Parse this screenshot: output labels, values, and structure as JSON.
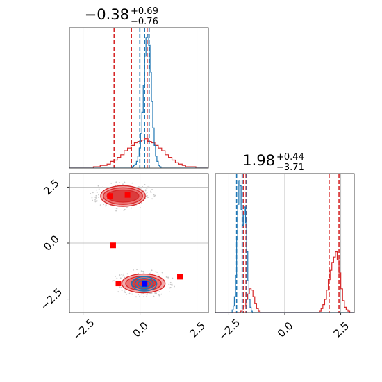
{
  "chart_data": {
    "type": "corner",
    "parameters": [
      {
        "title": {
          "median": "−0.38",
          "plus": "+0.69",
          "minus": "−0.76"
        },
        "range": [
          -3.1,
          3.0
        ],
        "ticks": [
          -2.5,
          0.0,
          2.5
        ],
        "tick_labels": [
          "−2.5",
          "0.0",
          "2.5"
        ]
      },
      {
        "title": {
          "median": "1.98",
          "plus": "+0.44",
          "minus": "−3.71"
        },
        "range": [
          -3.1,
          3.1
        ],
        "ticks": [
          -2.5,
          0.0,
          2.5
        ],
        "tick_labels": [
          "−2.5",
          "0.0",
          "2.5"
        ]
      }
    ],
    "panels": [
      {
        "kind": "hist1d",
        "param": 0,
        "series": [
          {
            "color": "#d62728",
            "bin_start": -3.1,
            "bin_width": 0.15,
            "counts": [
              0.0,
              0.0,
              0.0,
              0.0,
              0.0,
              0.0,
              0.0,
              0.01,
              0.01,
              0.02,
              0.02,
              0.03,
              0.05,
              0.06,
              0.08,
              0.1,
              0.13,
              0.15,
              0.17,
              0.19,
              0.2,
              0.21,
              0.22,
              0.2,
              0.19,
              0.17,
              0.15,
              0.13,
              0.1,
              0.08,
              0.06,
              0.04,
              0.03,
              0.02,
              0.01,
              0.01,
              0.01,
              0.0,
              0.0,
              0.0,
              0.0
            ],
            "quantiles": [
              -1.14,
              -0.38,
              0.31
            ],
            "truth": 0.4
          },
          {
            "color": "#1f77b4",
            "bin_start": -3.1,
            "bin_width": 0.06,
            "counts": [
              0.0,
              0.0,
              0.0,
              0.0,
              0.0,
              0.0,
              0.0,
              0.0,
              0.0,
              0.0,
              0.0,
              0.0,
              0.0,
              0.0,
              0.0,
              0.0,
              0.0,
              0.0,
              0.0,
              0.0,
              0.0,
              0.0,
              0.0,
              0.0,
              0.0,
              0.0,
              0.0,
              0.0,
              0.0,
              0.0,
              0.0,
              0.0,
              0.0,
              0.0,
              0.0,
              0.0,
              0.0,
              0.0,
              0.0,
              0.0,
              0.0,
              0.0,
              0.0,
              0.0,
              0.0,
              0.0,
              0.01,
              0.02,
              0.03,
              0.05,
              0.09,
              0.15,
              0.26,
              0.42,
              0.62,
              0.84,
              0.98,
              1.0,
              0.92,
              0.72,
              0.5,
              0.3,
              0.17,
              0.09,
              0.05,
              0.02,
              0.01,
              0.0,
              0.0,
              0.0,
              0.0,
              0.0,
              0.0,
              0.0,
              0.0,
              0.0,
              0.0,
              0.0,
              0.0,
              0.0,
              0.0,
              0.0,
              0.0,
              0.0,
              0.0,
              0.0,
              0.0,
              0.0,
              0.0,
              0.0,
              0.0,
              0.0,
              0.0,
              0.0,
              0.0,
              0.0,
              0.0,
              0.0,
              0.0,
              0.0,
              0.0
            ],
            "quantiles": [
              -0.01,
              0.2,
              0.4
            ]
          }
        ]
      },
      {
        "kind": "hist1d",
        "param": 1,
        "series": [
          {
            "color": "#d62728",
            "bin_start": -3.1,
            "bin_width": 0.08,
            "counts": [
              0.0,
              0.0,
              0.0,
              0.0,
              0.0,
              0.0,
              0.0,
              0.0,
              0.0,
              0.0,
              0.0,
              0.0,
              0.0,
              0.0,
              0.01,
              0.02,
              0.05,
              0.1,
              0.14,
              0.18,
              0.17,
              0.12,
              0.07,
              0.03,
              0.01,
              0.0,
              0.0,
              0.0,
              0.0,
              0.0,
              0.0,
              0.0,
              0.0,
              0.0,
              0.0,
              0.0,
              0.0,
              0.0,
              0.0,
              0.0,
              0.0,
              0.0,
              0.0,
              0.0,
              0.0,
              0.0,
              0.0,
              0.0,
              0.0,
              0.0,
              0.0,
              0.0,
              0.0,
              0.0,
              0.0,
              0.0,
              0.0,
              0.0,
              0.01,
              0.03,
              0.06,
              0.1,
              0.17,
              0.25,
              0.32,
              0.38,
              0.42,
              0.46,
              0.4,
              0.3,
              0.18,
              0.09,
              0.04,
              0.02,
              0.01,
              0.0,
              0.0,
              0.0
            ],
            "quantiles": [
              -1.73,
              1.98,
              2.42
            ],
            "truth": -1.84
          },
          {
            "color": "#1f77b4",
            "bin_start": -3.1,
            "bin_width": 0.05,
            "counts": [
              0.0,
              0.0,
              0.0,
              0.0,
              0.0,
              0.0,
              0.0,
              0.0,
              0.0,
              0.0,
              0.0,
              0.0,
              0.0,
              0.0,
              0.0,
              0.02,
              0.05,
              0.12,
              0.28,
              0.55,
              0.82,
              1.0,
              0.96,
              0.78,
              0.66,
              0.74,
              0.8,
              0.68,
              0.46,
              0.24,
              0.1,
              0.04,
              0.01,
              0.0,
              0.0,
              0.0,
              0.0,
              0.0,
              0.0,
              0.0,
              0.0,
              0.0,
              0.0,
              0.0,
              0.0,
              0.0,
              0.0,
              0.0,
              0.0,
              0.0,
              0.0,
              0.0,
              0.0,
              0.0,
              0.0,
              0.0,
              0.0,
              0.0,
              0.0,
              0.0,
              0.0,
              0.0,
              0.0,
              0.0,
              0.0,
              0.0,
              0.0,
              0.0,
              0.0,
              0.0,
              0.0,
              0.0,
              0.0,
              0.0,
              0.0,
              0.0,
              0.0,
              0.0,
              0.0,
              0.0,
              0.0,
              0.0,
              0.0,
              0.0,
              0.0,
              0.0,
              0.0,
              0.0,
              0.0,
              0.0,
              0.0,
              0.0,
              0.0,
              0.0,
              0.0,
              0.0,
              0.0,
              0.0,
              0.0,
              0.0,
              0.0,
              0.0,
              0.0,
              0.0,
              0.0,
              0.0,
              0.0,
              0.0,
              0.0,
              0.0,
              0.0,
              0.0,
              0.0,
              0.0,
              0.0,
              0.0,
              0.0,
              0.0,
              0.0,
              0.0,
              0.0,
              0.0,
              0.0,
              0.0
            ],
            "quantiles": [
              -2.15,
              -1.9,
              -1.7
            ]
          }
        ]
      },
      {
        "kind": "contour2d",
        "params": [
          0,
          1
        ],
        "series": [
          {
            "color": "#d62728",
            "modes": [
              {
                "cx": -0.75,
                "cy": 2.1,
                "levels": [
                  {
                    "rx": 0.98,
                    "ry": 0.46
                  },
                  {
                    "rx": 0.86,
                    "ry": 0.37
                  },
                  {
                    "rx": 0.7,
                    "ry": 0.27
                  }
                ]
              },
              {
                "cx": 0.15,
                "cy": -1.8,
                "levels": [
                  {
                    "rx": 0.95,
                    "ry": 0.42
                  },
                  {
                    "rx": 0.78,
                    "ry": 0.32
                  },
                  {
                    "rx": 0.55,
                    "ry": 0.22
                  }
                ]
              }
            ]
          },
          {
            "color": "#1f77b4",
            "modes": [
              {
                "cx": 0.18,
                "cy": -1.82,
                "levels": [
                  {
                    "rx": 0.55,
                    "ry": 0.32
                  },
                  {
                    "rx": 0.4,
                    "ry": 0.24
                  },
                  {
                    "rx": 0.26,
                    "ry": 0.15
                  }
                ]
              }
            ]
          }
        ],
        "markers": [
          {
            "x": -1.32,
            "y": 2.1,
            "color": "#ff0000"
          },
          {
            "x": -0.55,
            "y": 2.15,
            "color": "#ff0000"
          },
          {
            "x": -1.18,
            "y": -0.1,
            "color": "#ff0000"
          },
          {
            "x": -0.95,
            "y": -1.8,
            "color": "#ff0000"
          },
          {
            "x": 1.75,
            "y": -1.5,
            "color": "#ff0000"
          },
          {
            "x": 0.2,
            "y": -1.82,
            "color": "#0000ff"
          }
        ]
      }
    ]
  }
}
